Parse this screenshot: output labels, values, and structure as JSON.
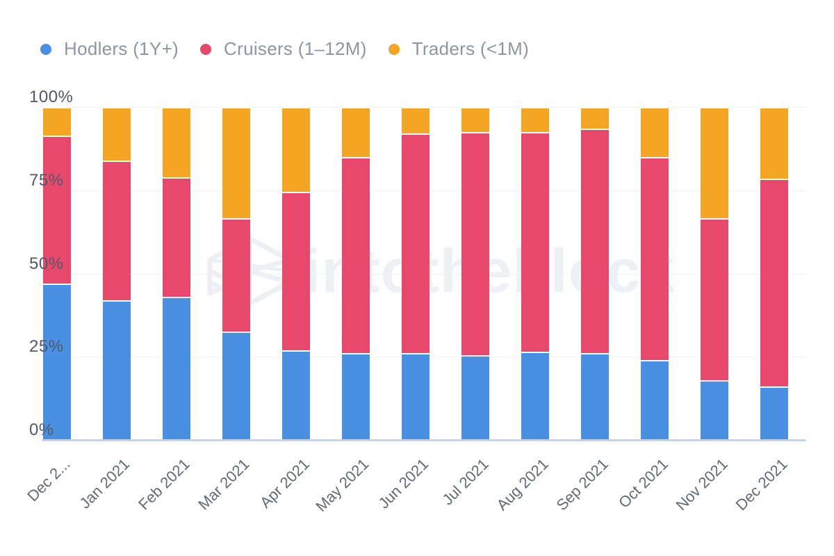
{
  "legend": {
    "items": [
      {
        "label": "Hodlers (1Y+)",
        "color": "#4a90e2"
      },
      {
        "label": "Cruisers (1–12M)",
        "color": "#e9486d"
      },
      {
        "label": "Traders (<1M)",
        "color": "#f4a523"
      }
    ]
  },
  "watermark": {
    "text": "intotheblock"
  },
  "chart_data": {
    "type": "bar",
    "stacked": true,
    "percent": true,
    "title": "",
    "xlabel": "",
    "ylabel": "",
    "legend_position": "top",
    "grid": true,
    "categories": [
      "Dec 2...",
      "Jan 2021",
      "Feb 2021",
      "Mar 2021",
      "Apr 2021",
      "May 2021",
      "Jun 2021",
      "Jul 2021",
      "Aug 2021",
      "Sep 2021",
      "Oct 2021",
      "Nov 2021",
      "Dec 2021"
    ],
    "series": [
      {
        "name": "Hodlers (1Y+)",
        "color": "#4a90e2",
        "values": [
          47,
          42,
          43,
          32.5,
          27,
          26,
          26,
          25.5,
          26.5,
          26,
          24,
          18,
          16
        ]
      },
      {
        "name": "Cruisers (1–12M)",
        "color": "#e9486d",
        "values": [
          44.5,
          42,
          36,
          34,
          47.5,
          59,
          66,
          67,
          66,
          67.5,
          61,
          48.5,
          62.5
        ]
      },
      {
        "name": "Traders (<1M)",
        "color": "#f4a523",
        "values": [
          8.5,
          16,
          21,
          33.5,
          25.5,
          15,
          8,
          7.5,
          7.5,
          6.5,
          15,
          33.5,
          21.5
        ]
      }
    ],
    "y_axis": {
      "min": 0,
      "max": 100,
      "tick_labels": [
        "0%",
        "25%",
        "50%",
        "75%",
        "100%"
      ],
      "tick_step": 25
    }
  }
}
